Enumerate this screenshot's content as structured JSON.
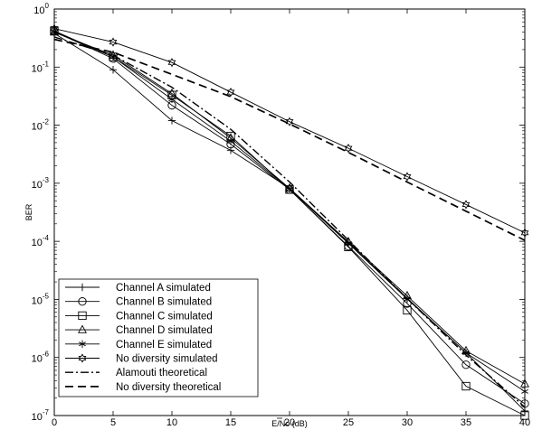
{
  "chart_data": {
    "type": "line",
    "title": "",
    "xlabel": "E/No (dB)",
    "ylabel": "BER",
    "xlim": [
      0,
      40
    ],
    "ylim": [
      1e-07,
      1
    ],
    "yscale": "log",
    "grid": false,
    "legend_position": "bottom-left",
    "x_ticks": [
      "0",
      "5",
      "10",
      "15",
      "20",
      "25",
      "30",
      "35",
      "40"
    ],
    "y_ticks": [
      {
        "base": "10",
        "exp": "0"
      },
      {
        "base": "10",
        "exp": "-1"
      },
      {
        "base": "10",
        "exp": "-2"
      },
      {
        "base": "10",
        "exp": "-3"
      },
      {
        "base": "10",
        "exp": "-4"
      },
      {
        "base": "10",
        "exp": "-5"
      },
      {
        "base": "10",
        "exp": "-6"
      },
      {
        "base": "10",
        "exp": "-7"
      }
    ],
    "series": [
      {
        "name": "Channel A simulated",
        "marker": "plus",
        "dash": "solid",
        "x": [
          0,
          5,
          10,
          15,
          20,
          25,
          30,
          35,
          40
        ],
        "y": [
          0.38,
          0.09,
          0.012,
          0.0037,
          0.00082,
          9.5e-05,
          1.05e-05,
          1.2e-06,
          1.2e-07
        ]
      },
      {
        "name": "Channel B simulated",
        "marker": "circle",
        "dash": "solid",
        "x": [
          0,
          5,
          10,
          15,
          20,
          25,
          30,
          35,
          40
        ],
        "y": [
          0.41,
          0.14,
          0.022,
          0.0047,
          0.00078,
          8.2e-05,
          8.5e-06,
          7.5e-07,
          1.6e-07
        ]
      },
      {
        "name": "Channel C simulated",
        "marker": "square",
        "dash": "solid",
        "x": [
          0,
          5,
          10,
          15,
          20,
          25,
          30,
          35,
          40
        ],
        "y": [
          0.42,
          0.15,
          0.033,
          0.0065,
          0.00078,
          8e-05,
          6.5e-06,
          3.2e-07,
          1e-07
        ]
      },
      {
        "name": "Channel D simulated",
        "marker": "triangle",
        "dash": "solid",
        "x": [
          0,
          5,
          10,
          15,
          20,
          25,
          30,
          35,
          40
        ],
        "y": [
          0.4,
          0.16,
          0.035,
          0.006,
          0.00082,
          9.8e-05,
          1.15e-05,
          1.3e-06,
          3.5e-07
        ]
      },
      {
        "name": "Channel E simulated",
        "marker": "star",
        "dash": "solid",
        "x": [
          0,
          5,
          10,
          15,
          20,
          25,
          30,
          35,
          40
        ],
        "y": [
          0.4,
          0.15,
          0.028,
          0.0053,
          0.0008,
          9.2e-05,
          1.02e-05,
          1.2e-06,
          2.6e-07
        ]
      },
      {
        "name": "No diversity simulated",
        "marker": "hexagram",
        "dash": "solid",
        "x": [
          0,
          5,
          10,
          15,
          20,
          25,
          30,
          35,
          40
        ],
        "y": [
          0.46,
          0.27,
          0.12,
          0.037,
          0.0115,
          0.004,
          0.0013,
          0.00043,
          0.00014
        ]
      },
      {
        "name": "Alamouti theoretical",
        "marker": "none",
        "dash": "dashdot",
        "x": [
          0,
          5,
          10,
          15,
          20,
          25,
          30,
          35,
          40
        ],
        "y": [
          0.33,
          0.16,
          0.045,
          0.0085,
          0.00105,
          0.000105,
          1.03e-05,
          1.1e-06,
          1.4e-07
        ]
      },
      {
        "name": "No diversity theoretical",
        "marker": "none",
        "dash": "dash",
        "x": [
          0,
          5,
          10,
          15,
          20,
          25,
          30,
          35,
          40
        ],
        "y": [
          0.3,
          0.18,
          0.075,
          0.031,
          0.0105,
          0.0034,
          0.00105,
          0.00033,
          0.000104
        ]
      }
    ]
  }
}
